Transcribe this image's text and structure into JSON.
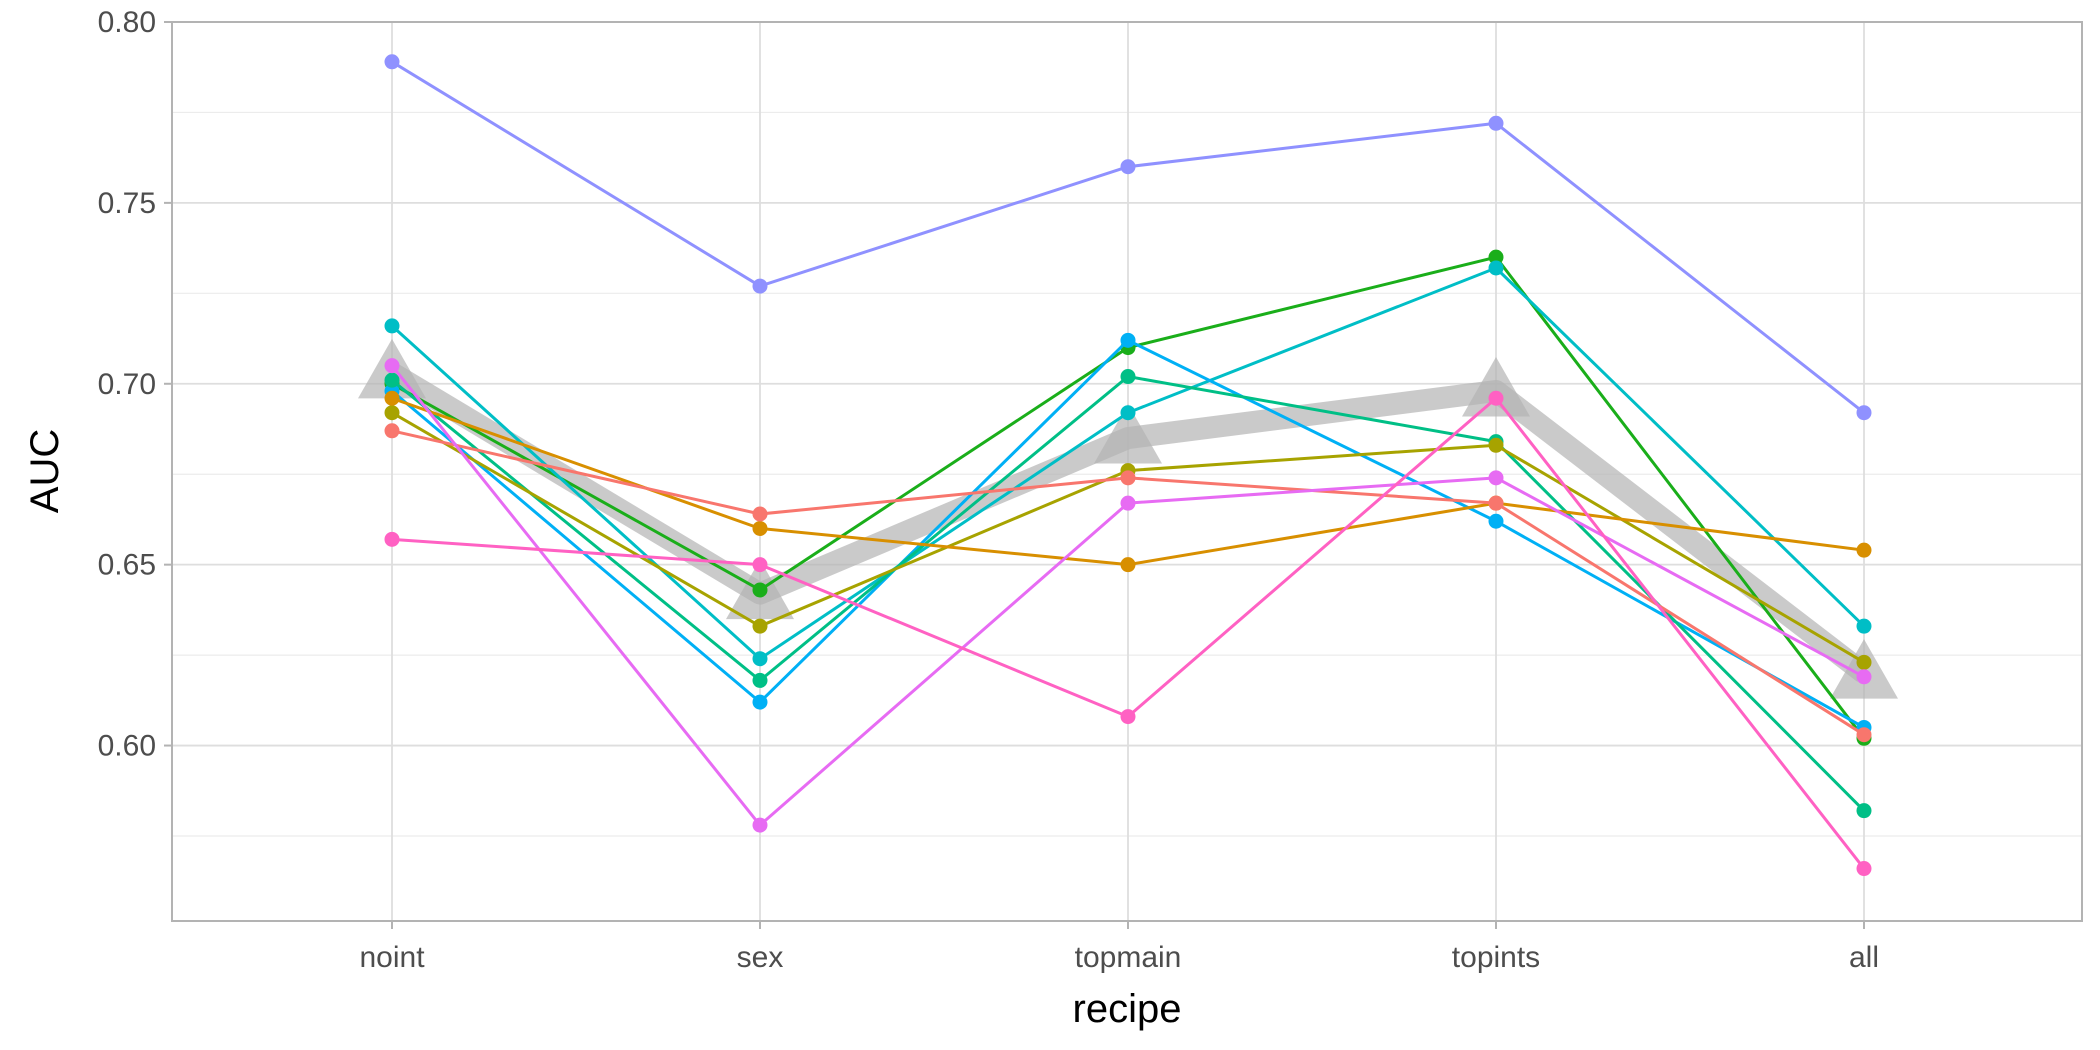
{
  "chart_data": {
    "type": "line",
    "title": "",
    "xlabel": "recipe",
    "ylabel": "AUC",
    "categories": [
      "noint",
      "sex",
      "topmain",
      "topints",
      "all"
    ],
    "ylim": [
      0.5515,
      0.8
    ],
    "yticks": [
      "0.60",
      "0.65",
      "0.70",
      "0.75",
      "0.80"
    ],
    "ytick_values": [
      0.6,
      0.65,
      0.7,
      0.75,
      0.8
    ],
    "grid": true,
    "legend": "none",
    "mean_series": {
      "values": [
        0.703,
        0.642,
        0.685,
        0.698,
        0.62
      ],
      "color": "#b3b3b3",
      "marker": "triangle"
    },
    "series": [
      {
        "color": "#8f91ff",
        "values": [
          0.789,
          0.727,
          0.76,
          0.772,
          0.692
        ]
      },
      {
        "color": "#1aae1a",
        "values": [
          0.7,
          0.643,
          0.71,
          0.735,
          0.602
        ]
      },
      {
        "color": "#00bec6",
        "values": [
          0.716,
          0.624,
          0.692,
          0.732,
          0.633
        ]
      },
      {
        "color": "#00b0f5",
        "values": [
          0.698,
          0.612,
          0.712,
          0.662,
          0.605
        ]
      },
      {
        "color": "#00bf86",
        "values": [
          0.701,
          0.618,
          0.702,
          0.684,
          0.582
        ]
      },
      {
        "color": "#a7a300",
        "values": [
          0.692,
          0.633,
          0.676,
          0.683,
          0.623
        ]
      },
      {
        "color": "#d88f00",
        "values": [
          0.696,
          0.66,
          0.65,
          0.667,
          0.654
        ]
      },
      {
        "color": "#f8766d",
        "values": [
          0.687,
          0.664,
          0.674,
          0.667,
          0.603
        ]
      },
      {
        "color": "#e76bf3",
        "values": [
          0.705,
          0.578,
          0.667,
          0.674,
          0.619
        ]
      },
      {
        "color": "#ff61c3",
        "values": [
          0.657,
          0.65,
          0.608,
          0.696,
          0.566
        ]
      }
    ]
  }
}
